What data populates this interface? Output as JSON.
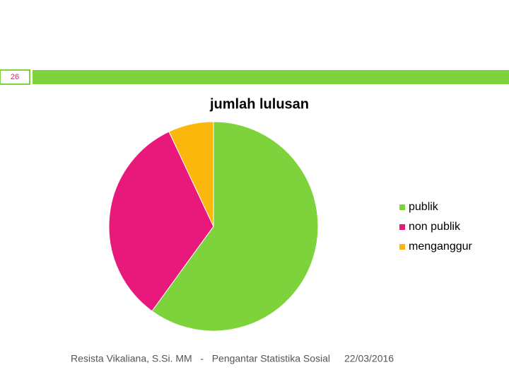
{
  "slide_number": "26",
  "footer": {
    "author": "Resista Vikaliana, S.Si. MM   -   Pengantar Statistika Sosial",
    "date": "22/03/2016"
  },
  "chart_data": {
    "type": "pie",
    "title": "jumlah lulusan",
    "categories": [
      "publik",
      "non publik",
      "menganggur"
    ],
    "values": [
      60,
      33,
      7
    ],
    "colors": [
      "#7ed23c",
      "#e8197b",
      "#fbb70c"
    ],
    "legend": "right"
  }
}
